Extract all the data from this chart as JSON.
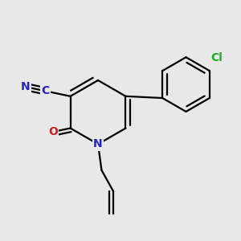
{
  "background_color": "#e8e8e8",
  "bond_color": "#000000",
  "bond_width": 1.6,
  "atom_labels": {
    "N": {
      "color": "#2222cc",
      "fontsize": 10,
      "fontweight": "bold"
    },
    "O": {
      "color": "#cc2222",
      "fontsize": 10,
      "fontweight": "bold"
    },
    "C_blue": {
      "color": "#2222cc",
      "fontsize": 10,
      "fontweight": "bold"
    },
    "Cl": {
      "color": "#22aa22",
      "fontsize": 10,
      "fontweight": "bold"
    }
  },
  "fig_width": 3.0,
  "fig_height": 3.0,
  "dpi": 100
}
